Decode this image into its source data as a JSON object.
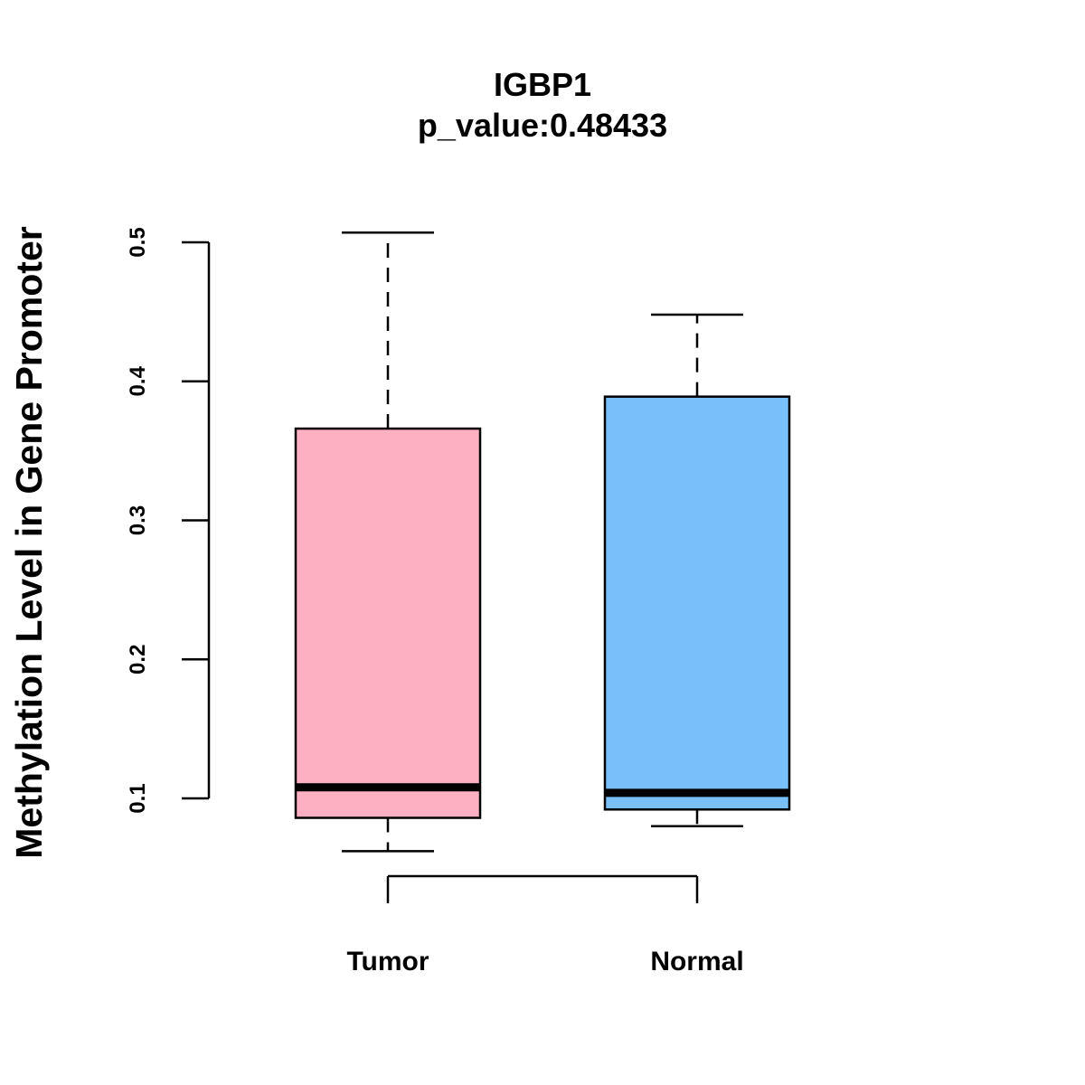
{
  "chart_data": {
    "type": "boxplot",
    "title": "IGBP1",
    "subtitle": "p_value:0.48433",
    "xlabel": "",
    "ylabel": "Methylation Level in Gene Promoter",
    "ylim": [
      0.1,
      0.5
    ],
    "yticks": [
      "0.1",
      "0.2",
      "0.3",
      "0.4",
      "0.5"
    ],
    "categories": [
      "Tumor",
      "Normal"
    ],
    "boxes": [
      {
        "name": "Tumor",
        "color": "#FCB0C2",
        "whisker_low": 0.062,
        "q1": 0.086,
        "median": 0.108,
        "q3": 0.366,
        "whisker_high": 0.507
      },
      {
        "name": "Normal",
        "color": "#78C0F7",
        "whisker_low": 0.08,
        "q1": 0.092,
        "median": 0.104,
        "q3": 0.389,
        "whisker_high": 0.448
      }
    ],
    "comparison_bracket": [
      "Tumor",
      "Normal"
    ],
    "grid": false
  }
}
